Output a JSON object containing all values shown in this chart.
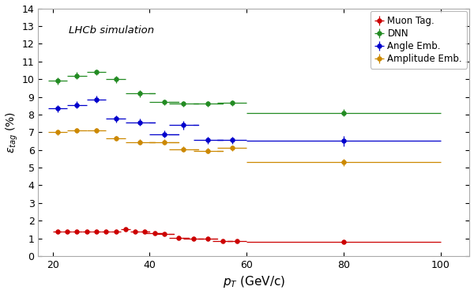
{
  "annotation": "LHCb simulation",
  "xlabel": "$p_T$ (GeV/c)",
  "ylabel": "$\\epsilon_{tag}$ (%)",
  "ylim": [
    0,
    14
  ],
  "xlim": [
    17,
    106
  ],
  "yticks": [
    0,
    1,
    2,
    3,
    4,
    5,
    6,
    7,
    8,
    9,
    10,
    11,
    12,
    13,
    14
  ],
  "xticks": [
    20,
    40,
    60,
    80,
    100
  ],
  "muon": {
    "label": "Muon Tag.",
    "color": "#cc0000",
    "x": [
      21,
      23,
      25,
      27,
      29,
      31,
      33,
      35,
      37,
      39,
      41,
      43,
      46,
      49,
      52,
      55,
      58,
      80
    ],
    "y": [
      1.4,
      1.4,
      1.4,
      1.4,
      1.4,
      1.4,
      1.4,
      1.5,
      1.4,
      1.4,
      1.3,
      1.25,
      1.05,
      1.0,
      1.0,
      0.85,
      0.85,
      0.8
    ],
    "xerr": [
      1,
      1,
      1,
      1,
      1,
      1,
      1,
      1,
      1,
      1,
      2,
      2,
      2,
      2,
      2,
      2,
      2,
      20
    ],
    "yerr": [
      0.05,
      0.05,
      0.05,
      0.05,
      0.05,
      0.05,
      0.05,
      0.05,
      0.05,
      0.05,
      0.05,
      0.05,
      0.05,
      0.05,
      0.05,
      0.05,
      0.05,
      0.05
    ]
  },
  "dnn": {
    "label": "DNN",
    "color": "#228B22",
    "x": [
      21,
      25,
      29,
      33,
      38,
      43,
      47,
      52,
      57,
      80
    ],
    "y": [
      9.9,
      10.2,
      10.4,
      10.0,
      9.2,
      8.7,
      8.6,
      8.6,
      8.65,
      8.1
    ],
    "xerr": [
      2,
      2,
      2,
      2,
      3,
      3,
      3,
      3,
      3,
      20
    ],
    "yerr": [
      0.2,
      0.2,
      0.15,
      0.2,
      0.2,
      0.15,
      0.15,
      0.15,
      0.15,
      0.2
    ]
  },
  "angle": {
    "label": "Angle Emb.",
    "color": "#0000cc",
    "x": [
      21,
      25,
      29,
      33,
      38,
      43,
      47,
      52,
      57,
      80
    ],
    "y": [
      8.35,
      8.55,
      8.85,
      7.75,
      7.55,
      6.9,
      7.4,
      6.55,
      6.55,
      6.5
    ],
    "xerr": [
      2,
      2,
      2,
      2,
      3,
      3,
      3,
      3,
      3,
      20
    ],
    "yerr": [
      0.2,
      0.2,
      0.2,
      0.2,
      0.2,
      0.2,
      0.25,
      0.2,
      0.2,
      0.3
    ]
  },
  "amplitude": {
    "label": "Amplitude Emb.",
    "color": "#cc8800",
    "x": [
      21,
      25,
      29,
      33,
      38,
      43,
      47,
      52,
      57,
      80
    ],
    "y": [
      7.0,
      7.1,
      7.1,
      6.65,
      6.45,
      6.45,
      6.05,
      5.95,
      6.1,
      5.3
    ],
    "xerr": [
      2,
      2,
      2,
      2,
      3,
      3,
      3,
      3,
      3,
      20
    ],
    "yerr": [
      0.15,
      0.15,
      0.15,
      0.15,
      0.15,
      0.15,
      0.15,
      0.15,
      0.15,
      0.2
    ]
  },
  "background_color": "#ffffff",
  "fig_bg": "#ffffff"
}
